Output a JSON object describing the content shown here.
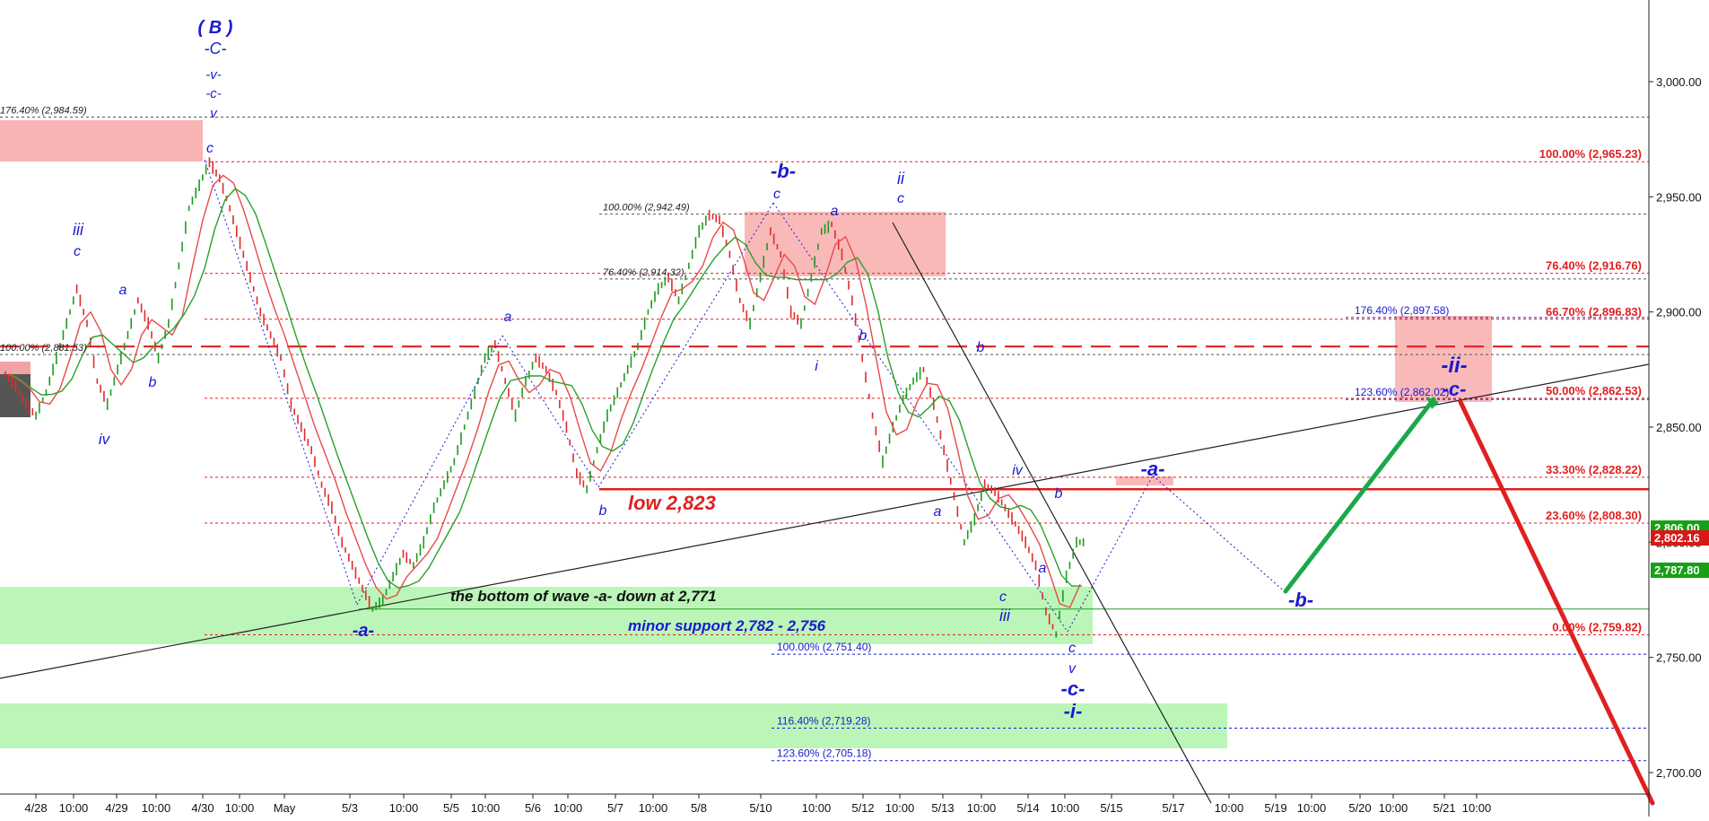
{
  "chart_data": {
    "type": "line",
    "title": "",
    "y_axis": {
      "min": 2690,
      "max": 3030,
      "ticks": [
        3000,
        2950,
        2900,
        2850,
        2800,
        2750,
        2700
      ],
      "tick_labels": [
        "3,000.00",
        "2,950.00",
        "2,900.00",
        "2,850.00",
        "2,800.00",
        "2,750.00",
        "2,700.00"
      ]
    },
    "x_axis": {
      "tick_labels": [
        "4/28",
        "10:00",
        "4/29",
        "10:00",
        "4/30",
        "10:00",
        "May",
        "5/3",
        "10:00",
        "5/5",
        "10:00",
        "5/6",
        "10:00",
        "5/7",
        "10:00",
        "5/8",
        "5/10",
        "10:00",
        "5/12",
        "10:00",
        "5/13",
        "10:00",
        "5/14",
        "10:00",
        "5/15",
        "5/17",
        "10:00",
        "5/19",
        "10:00",
        "5/20",
        "10:00",
        "5/21",
        "10:00"
      ]
    },
    "price_badges": [
      {
        "value": "2,806.00",
        "color": "#16a016"
      },
      {
        "value": "2,802.16",
        "color": "#d81818"
      },
      {
        "value": "2,787.80",
        "color": "#16a016"
      }
    ],
    "price_series": [
      [
        2873,
        2868,
        2860,
        2855,
        2865,
        2880,
        2895,
        2910,
        2895,
        2870,
        2860,
        2875,
        2890,
        2905,
        2895,
        2880,
        2895,
        2920,
        2945,
        2955,
        2965,
        2958,
        2945,
        2930,
        2915,
        2900,
        2890,
        2880,
        2860,
        2850,
        2840,
        2825,
        2815,
        2800,
        2790,
        2780,
        2771,
        2775,
        2785,
        2795,
        2790,
        2800,
        2815,
        2825,
        2835,
        2850,
        2865,
        2880,
        2886,
        2870,
        2855,
        2870,
        2880,
        2875,
        2865,
        2850,
        2830,
        2823,
        2840,
        2855,
        2865,
        2875,
        2885,
        2900,
        2910,
        2915,
        2905,
        2920,
        2935,
        2942,
        2940,
        2925,
        2905,
        2895,
        2915,
        2935,
        2925,
        2900,
        2895,
        2915,
        2935,
        2938,
        2925,
        2905,
        2880,
        2855,
        2835,
        2850,
        2862,
        2870,
        2875,
        2860,
        2840,
        2820,
        2800,
        2810,
        2825,
        2822,
        2815,
        2808,
        2800,
        2790,
        2770,
        2760,
        2785,
        2800
      ]
    ],
    "series": [
      {
        "name": "",
        "values": []
      }
    ],
    "horizontal_levels": [
      {
        "label": "176.40% (2,984.59)",
        "value": 2984.59,
        "color": "#555555",
        "label_side": "left"
      },
      {
        "label": "100.00% (2,965.23)",
        "value": 2965.23,
        "color": "#e02020",
        "label_side": "right"
      },
      {
        "label": "100.00% (2,942.49)",
        "value": 2942.49,
        "color": "#555555",
        "label_side": "mid"
      },
      {
        "label": "76.40% (2,916.76)",
        "value": 2916.76,
        "color": "#e02020",
        "label_side": "right"
      },
      {
        "label": "76.40% (2,914.32)",
        "value": 2914.32,
        "color": "#555555",
        "label_side": "mid"
      },
      {
        "label": "176.40% (2,897.58)",
        "value": 2897.58,
        "color": "#1a1ad0",
        "label_side": "mid2"
      },
      {
        "label": "66.70% (2,896.83)",
        "value": 2896.83,
        "color": "#e02020",
        "label_side": "right"
      },
      {
        "label": "100.00% (2,881.53)",
        "value": 2881.53,
        "color": "#555555",
        "label_side": "left"
      },
      {
        "label": "123.60% (2,862.02)",
        "value": 2862.02,
        "color": "#1a1ad0",
        "label_side": "mid2"
      },
      {
        "label": "50.00% (2,862.53)",
        "value": 2862.53,
        "color": "#e02020",
        "label_side": "right"
      },
      {
        "label": "33.30% (2,828.22)",
        "value": 2828.22,
        "color": "#e02020",
        "label_side": "right"
      },
      {
        "label": "23.60% (2,808.30)",
        "value": 2808.3,
        "color": "#e02020",
        "label_side": "right"
      },
      {
        "label": "0.00% (2,759.82)",
        "value": 2759.82,
        "color": "#e02020",
        "label_side": "right"
      },
      {
        "label": "100.00% (2,751.40)",
        "value": 2751.4,
        "color": "#1a1ad0",
        "label_side": "mid3"
      },
      {
        "label": "116.40% (2,719.28)",
        "value": 2719.28,
        "color": "#1a1ad0",
        "label_side": "mid3"
      },
      {
        "label": "123.60% (2,705.18)",
        "value": 2705.18,
        "color": "#1a1ad0",
        "label_side": "mid3"
      }
    ],
    "annotations": {
      "low_label": "low 2,823",
      "bottom_note": "the bottom of wave -a- down at 2,771",
      "support_note": "minor support 2,782 - 2,756",
      "wave_labels": [
        "( B )",
        "-C-",
        "-v-",
        "-c-",
        "v",
        "c",
        "iii",
        "c",
        "a",
        "b",
        "iv",
        "-a-",
        "a",
        "b",
        "-b-",
        "c",
        "a",
        "b",
        "i",
        "ii",
        "c",
        "b",
        "iv",
        "b",
        "a",
        "a",
        "c",
        "iii",
        "c",
        "v",
        "-c-",
        "-i-",
        "-a-",
        "-b-",
        "-ii-",
        "-c-"
      ]
    }
  }
}
